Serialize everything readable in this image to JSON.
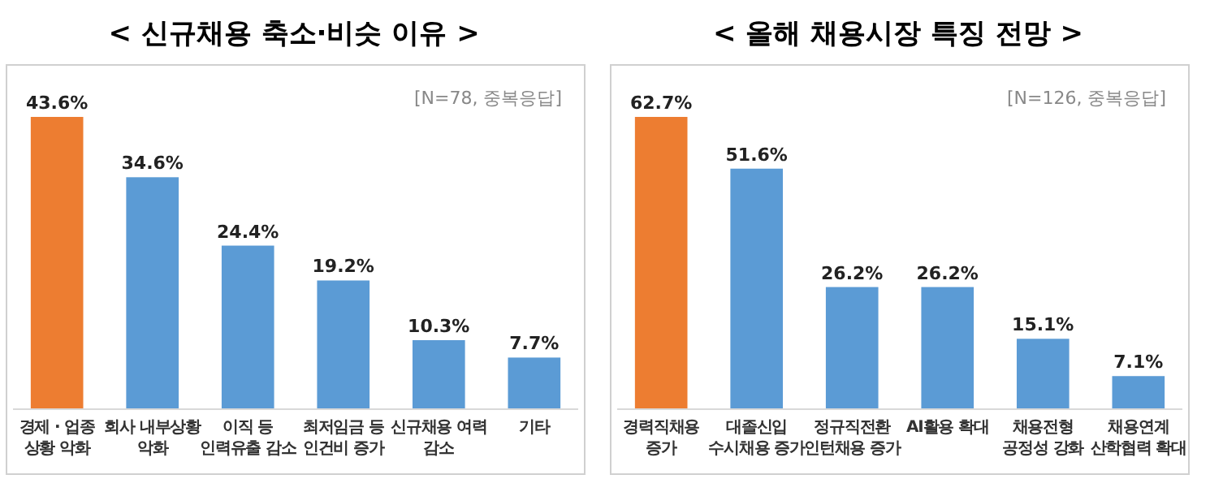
{
  "chart_data": [
    {
      "type": "bar",
      "title": "< 신규채용 축소·비슷 이유 >",
      "categories": [
        "경제 · 업종\n상황 악화",
        "회사 내부상황\n악화",
        "이직 등\n인력유출 감소",
        "최저임금 등\n인건비 증가",
        "신규채용 여력\n감소",
        "기타"
      ],
      "values": [
        43.6,
        34.6,
        24.4,
        19.2,
        10.3,
        7.7
      ],
      "colors": [
        "#ed7d31",
        "#5b9bd5",
        "#5b9bd5",
        "#5b9bd5",
        "#5b9bd5",
        "#5b9bd5"
      ],
      "value_labels": [
        "43.6%",
        "34.6%",
        "24.4%",
        "19.2%",
        "10.3%",
        "7.7%"
      ],
      "annotations": [
        "[N=78, 중복응답]"
      ]
    },
    {
      "type": "bar",
      "title": "< 올해 채용시장 특징 전망 >",
      "categories": [
        "경력직채용\n증가",
        "대졸신입\n수시채용 증가",
        "정규직전환\n인턴채용 증가",
        "AI활용 확대",
        "채용전형\n공정성 강화",
        "채용연계\n산학협력 확대"
      ],
      "values": [
        62.7,
        51.6,
        26.2,
        26.2,
        15.1,
        7.1
      ],
      "colors": [
        "#ed7d31",
        "#5b9bd5",
        "#5b9bd5",
        "#5b9bd5",
        "#5b9bd5",
        "#5b9bd5"
      ],
      "value_labels": [
        "62.7%",
        "51.6%",
        "26.2%",
        "26.2%",
        "15.1%",
        "7.1%"
      ],
      "annotations": [
        "[N=126, 중복응답]"
      ]
    }
  ]
}
